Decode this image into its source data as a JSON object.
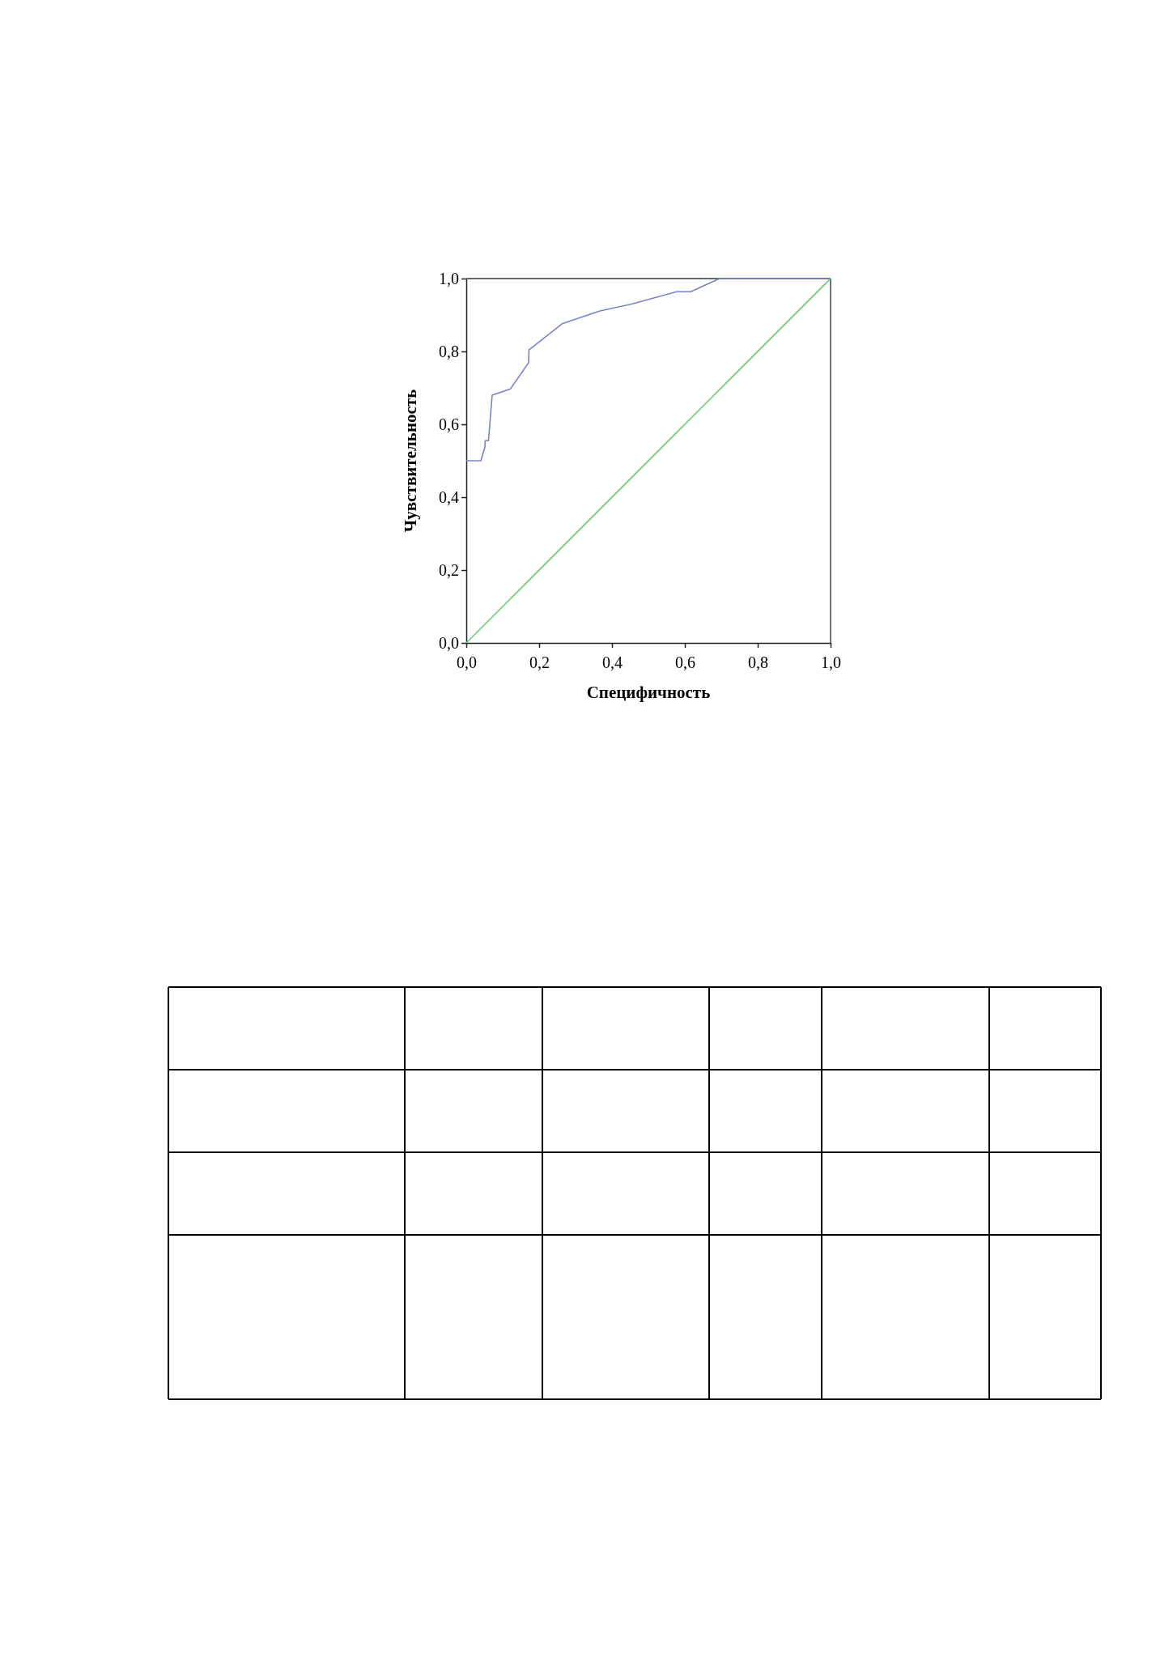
{
  "chart_data": {
    "type": "line",
    "xlabel": "Специфичность",
    "ylabel": "Чувствительность",
    "xlim": [
      0,
      1
    ],
    "ylim": [
      0,
      1
    ],
    "xticks": [
      {
        "value": 0,
        "label": "0,0"
      },
      {
        "value": 0.2,
        "label": "0,2"
      },
      {
        "value": 0.4,
        "label": "0,4"
      },
      {
        "value": 0.6,
        "label": "0,6"
      },
      {
        "value": 0.8,
        "label": "0,8"
      },
      {
        "value": 1,
        "label": "1,0"
      }
    ],
    "yticks": [
      {
        "value": 0,
        "label": "0,0"
      },
      {
        "value": 0.2,
        "label": "0,2"
      },
      {
        "value": 0.4,
        "label": "0,4"
      },
      {
        "value": 0.6,
        "label": "0,6"
      },
      {
        "value": 0.8,
        "label": "0,8"
      },
      {
        "value": 1,
        "label": "1,0"
      }
    ],
    "grid": false,
    "marker": "none",
    "line_style": "solid",
    "series": [
      {
        "color": "#7884c4",
        "x": [
          0,
          0.04,
          0.051,
          0.052,
          0.061,
          0.071,
          0.121,
          0.171,
          0.172,
          0.263,
          0.367,
          0.458,
          0.577,
          0.616,
          0.695,
          1
        ],
        "values": [
          0.5,
          0.5,
          0.537,
          0.555,
          0.555,
          0.68,
          0.697,
          0.769,
          0.804,
          0.876,
          0.911,
          0.931,
          0.964,
          0.964,
          1,
          1
        ]
      },
      {
        "color": "#66cc77",
        "x": [
          0,
          1
        ],
        "values": [
          0,
          1
        ]
      }
    ]
  }
}
